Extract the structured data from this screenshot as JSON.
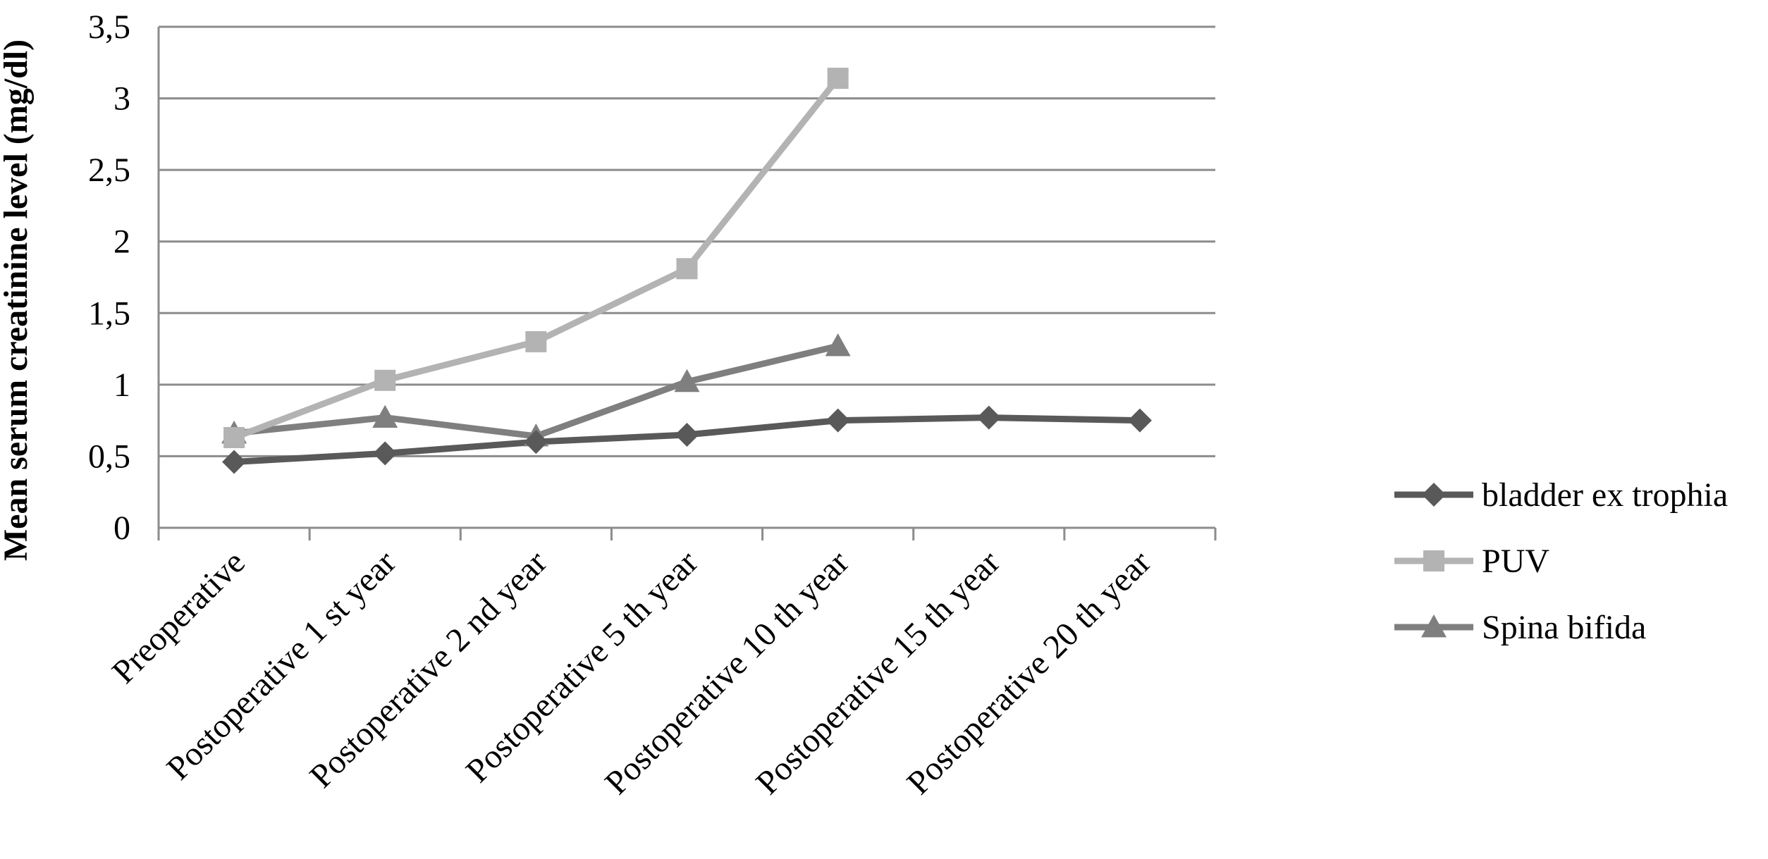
{
  "chart_data": {
    "type": "line",
    "title": "",
    "xlabel": "",
    "ylabel": "Mean  serum creatinine level (mg/dl)",
    "ylim": [
      0,
      3.5
    ],
    "yticks": [
      0,
      0.5,
      1,
      1.5,
      2,
      2.5,
      3,
      3.5
    ],
    "ytick_labels": [
      "0",
      "0,5",
      "1",
      "1,5",
      "2",
      "2,5",
      "3",
      "3,5"
    ],
    "grid": true,
    "legend_position": "right",
    "categories": [
      "Preoperative",
      "Postoperative 1 st year",
      "Postoperative 2 nd year",
      "Postoperative 5 th year",
      "Postoperative 10 th year",
      "Postoperative 15 th year",
      "Postoperative 20 th year"
    ],
    "series": [
      {
        "name": "bladder ex trophia",
        "marker": "diamond",
        "color": "#595959",
        "values": [
          0.46,
          0.52,
          0.6,
          0.65,
          0.75,
          0.77,
          0.75
        ]
      },
      {
        "name": "PUV",
        "marker": "square",
        "color": "#b3b3b3",
        "values": [
          0.63,
          1.03,
          1.3,
          1.81,
          3.14,
          null,
          null
        ]
      },
      {
        "name": "Spina bifida",
        "marker": "triangle",
        "color": "#7f7f7f",
        "values": [
          0.66,
          0.77,
          0.64,
          1.02,
          1.27,
          null,
          null
        ]
      }
    ]
  }
}
